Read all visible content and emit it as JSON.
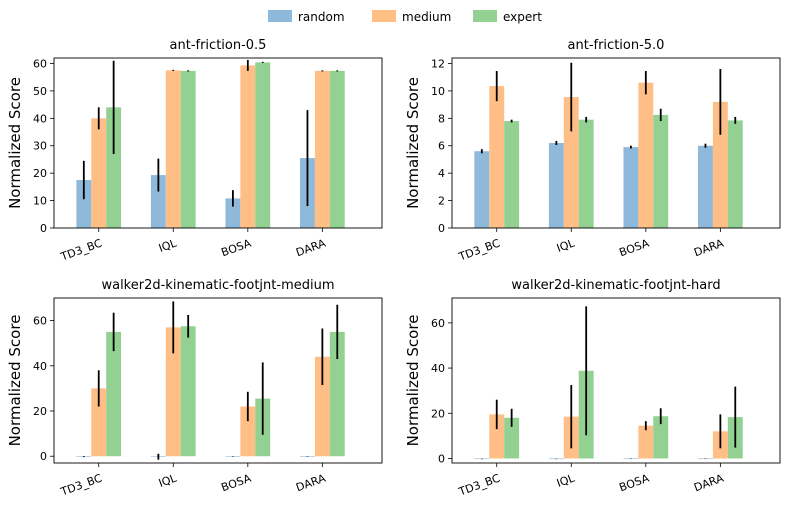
{
  "legend": [
    {
      "name": "random",
      "color": "#8fb9db"
    },
    {
      "name": "medium",
      "color": "#ffbe86"
    },
    {
      "name": "expert",
      "color": "#93d192"
    }
  ],
  "chart_data": [
    {
      "type": "bar",
      "title": "ant-friction-0.5",
      "ylabel": "Normalized Score",
      "ylim": [
        0,
        62
      ],
      "yticks": [
        0,
        10,
        20,
        30,
        40,
        50,
        60
      ],
      "categories": [
        "TD3_BC",
        "IQL",
        "BOSA",
        "DARA"
      ],
      "series": [
        {
          "name": "random",
          "values": [
            17.5,
            19.3,
            10.8,
            25.5
          ],
          "errors": [
            7,
            6,
            3,
            17.5
          ]
        },
        {
          "name": "medium",
          "values": [
            40,
            57.5,
            59.3,
            57.3
          ],
          "errors": [
            4,
            0.2,
            2,
            0.2
          ]
        },
        {
          "name": "expert",
          "values": [
            44,
            57.3,
            60.4,
            57.3
          ],
          "errors": [
            17,
            0.2,
            0.2,
            0.2
          ]
        }
      ]
    },
    {
      "type": "bar",
      "title": "ant-friction-5.0",
      "ylabel": "Normalized Score",
      "ylim": [
        0,
        12.4
      ],
      "yticks": [
        0,
        2,
        4,
        6,
        8,
        10,
        12
      ],
      "categories": [
        "TD3_BC",
        "IQL",
        "BOSA",
        "DARA"
      ],
      "series": [
        {
          "name": "random",
          "values": [
            5.6,
            6.2,
            5.9,
            6.0
          ],
          "errors": [
            0.15,
            0.15,
            0.1,
            0.15
          ]
        },
        {
          "name": "medium",
          "values": [
            10.35,
            9.55,
            10.6,
            9.2
          ],
          "errors": [
            1.1,
            2.5,
            0.85,
            2.4
          ]
        },
        {
          "name": "expert",
          "values": [
            7.8,
            7.9,
            8.25,
            7.85
          ],
          "errors": [
            0.1,
            0.2,
            0.45,
            0.25
          ]
        }
      ]
    },
    {
      "type": "bar",
      "title": "walker2d-kinematic-footjnt-medium",
      "ylabel": "Normalized Score",
      "ylim": [
        -3,
        70
      ],
      "yticks": [
        0,
        20,
        40,
        60
      ],
      "categories": [
        "TD3_BC",
        "IQL",
        "BOSA",
        "DARA"
      ],
      "series": [
        {
          "name": "random",
          "values": [
            -0.2,
            -0.2,
            -0.1,
            -0.1
          ],
          "errors": [
            0.2,
            1.3,
            0.1,
            0.1
          ]
        },
        {
          "name": "medium",
          "values": [
            30,
            57,
            22,
            44
          ],
          "errors": [
            8,
            11.5,
            6.5,
            12.5
          ]
        },
        {
          "name": "expert",
          "values": [
            55,
            57.5,
            25.5,
            55
          ],
          "errors": [
            8.5,
            5,
            16,
            12
          ]
        }
      ]
    },
    {
      "type": "bar",
      "title": "walker2d-kinematic-footjnt-hard",
      "ylabel": "Normalized Score",
      "ylim": [
        -2,
        71
      ],
      "yticks": [
        0,
        20,
        40,
        60
      ],
      "categories": [
        "TD3_BC",
        "IQL",
        "BOSA",
        "DARA"
      ],
      "series": [
        {
          "name": "random",
          "values": [
            -0.2,
            -0.2,
            -0.1,
            -0.1
          ],
          "errors": [
            0.1,
            0.1,
            0.1,
            0.1
          ]
        },
        {
          "name": "medium",
          "values": [
            19.5,
            18.5,
            14.5,
            12
          ],
          "errors": [
            6.5,
            14,
            2,
            7.5
          ]
        },
        {
          "name": "expert",
          "values": [
            18,
            38.8,
            18.7,
            18.3
          ],
          "errors": [
            4,
            28.5,
            3.5,
            13.5
          ]
        }
      ]
    }
  ]
}
